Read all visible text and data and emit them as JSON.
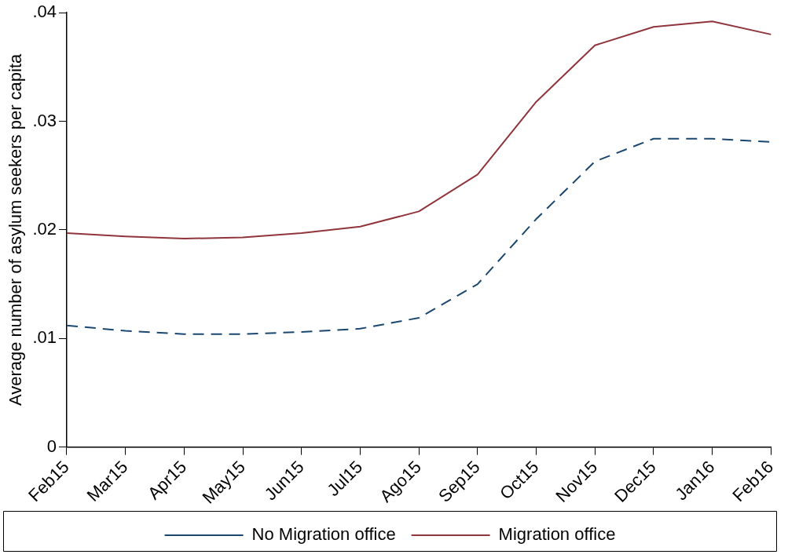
{
  "chart_data": {
    "type": "line",
    "ylabel": "Average number of asylum seekers per capita",
    "categories": [
      "Feb15",
      "Mar15",
      "Apr15",
      "May15",
      "Jun15",
      "Jul15",
      "Ago15",
      "Sep15",
      "Oct15",
      "Nov15",
      "Dec15",
      "Jan16",
      "Feb16"
    ],
    "series": [
      {
        "name": "No Migration office",
        "color": "#1a476f",
        "line_style": "dashed",
        "values": [
          0.0112,
          0.0107,
          0.0104,
          0.0104,
          0.0106,
          0.0109,
          0.0119,
          0.015,
          0.021,
          0.0263,
          0.0284,
          0.0284,
          0.0281
        ]
      },
      {
        "name": "Migration office",
        "color": "#90353b",
        "line_style": "solid",
        "values": [
          0.0197,
          0.0194,
          0.0192,
          0.0193,
          0.0197,
          0.0203,
          0.0217,
          0.0251,
          0.0318,
          0.037,
          0.0387,
          0.0392,
          0.038
        ]
      }
    ],
    "ylim": [
      0,
      0.04
    ],
    "yticks": [
      {
        "value": 0,
        "label": "0"
      },
      {
        "value": 0.01,
        "label": ".01"
      },
      {
        "value": 0.02,
        "label": ".02"
      },
      {
        "value": 0.03,
        "label": ".03"
      },
      {
        "value": 0.04,
        "label": ".04"
      }
    ],
    "grid": false,
    "legend": "bottom",
    "marker": "none"
  }
}
